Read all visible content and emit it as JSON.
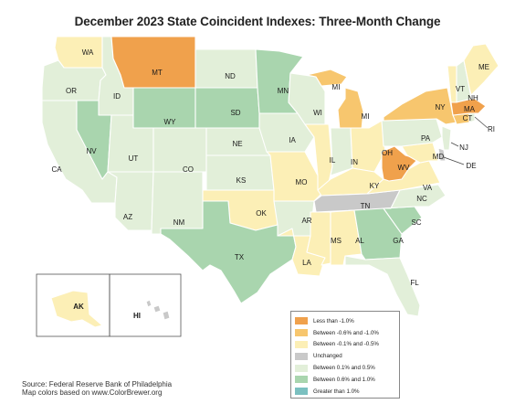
{
  "title": "December 2023 State Coincident Indexes: Three-Month Change",
  "legend": [
    {
      "key": "lt-1",
      "label": "Less than -1.0%",
      "color": "#f0a14c"
    },
    {
      "key": "m10-m06",
      "label": "Between -0.6% and -1.0%",
      "color": "#f7c66e"
    },
    {
      "key": "m05-m01",
      "label": "Between -0.1% and -0.5%",
      "color": "#fcefb6"
    },
    {
      "key": "zero",
      "label": "Unchanged",
      "color": "#c9c9c9"
    },
    {
      "key": "p01-p05",
      "label": "Between 0.1% and 0.5%",
      "color": "#e2efd9"
    },
    {
      "key": "p06-p10",
      "label": "Between 0.6% and 1.0%",
      "color": "#a9d5ae"
    },
    {
      "key": "gt1",
      "label": "Greater than 1.0%",
      "color": "#7bc0c0"
    }
  ],
  "states": [
    {
      "abbr": "WA",
      "cat": "m05-m01"
    },
    {
      "abbr": "OR",
      "cat": "p01-p05"
    },
    {
      "abbr": "CA",
      "cat": "p01-p05"
    },
    {
      "abbr": "ID",
      "cat": "p01-p05"
    },
    {
      "abbr": "NV",
      "cat": "p06-p10"
    },
    {
      "abbr": "UT",
      "cat": "p01-p05"
    },
    {
      "abbr": "AZ",
      "cat": "p01-p05"
    },
    {
      "abbr": "MT",
      "cat": "lt-1"
    },
    {
      "abbr": "WY",
      "cat": "p06-p10"
    },
    {
      "abbr": "CO",
      "cat": "p01-p05"
    },
    {
      "abbr": "NM",
      "cat": "p01-p05"
    },
    {
      "abbr": "ND",
      "cat": "p01-p05"
    },
    {
      "abbr": "SD",
      "cat": "p06-p10"
    },
    {
      "abbr": "NE",
      "cat": "p01-p05"
    },
    {
      "abbr": "KS",
      "cat": "p01-p05"
    },
    {
      "abbr": "OK",
      "cat": "m05-m01"
    },
    {
      "abbr": "TX",
      "cat": "p06-p10"
    },
    {
      "abbr": "MN",
      "cat": "p06-p10"
    },
    {
      "abbr": "IA",
      "cat": "p01-p05"
    },
    {
      "abbr": "MO",
      "cat": "m05-m01"
    },
    {
      "abbr": "AR",
      "cat": "p01-p05"
    },
    {
      "abbr": "LA",
      "cat": "m05-m01"
    },
    {
      "abbr": "WI",
      "cat": "p01-p05"
    },
    {
      "abbr": "IL",
      "cat": "m05-m01"
    },
    {
      "abbr": "MI",
      "cat": "m10-m06"
    },
    {
      "abbr": "IN",
      "cat": "p01-p05"
    },
    {
      "abbr": "OH",
      "cat": "m05-m01"
    },
    {
      "abbr": "KY",
      "cat": "m05-m01"
    },
    {
      "abbr": "TN",
      "cat": "zero"
    },
    {
      "abbr": "MS",
      "cat": "m05-m01"
    },
    {
      "abbr": "AL",
      "cat": "m05-m01"
    },
    {
      "abbr": "GA",
      "cat": "p06-p10"
    },
    {
      "abbr": "FL",
      "cat": "p01-p05"
    },
    {
      "abbr": "SC",
      "cat": "p06-p10"
    },
    {
      "abbr": "NC",
      "cat": "p01-p05"
    },
    {
      "abbr": "VA",
      "cat": "m05-m01"
    },
    {
      "abbr": "WV",
      "cat": "lt-1"
    },
    {
      "abbr": "MD",
      "cat": "m05-m01"
    },
    {
      "abbr": "DE",
      "cat": "zero"
    },
    {
      "abbr": "PA",
      "cat": "p01-p05"
    },
    {
      "abbr": "NJ",
      "cat": "p01-p05"
    },
    {
      "abbr": "NY",
      "cat": "m10-m06"
    },
    {
      "abbr": "CT",
      "cat": "m10-m06"
    },
    {
      "abbr": "RI",
      "cat": "p01-p05"
    },
    {
      "abbr": "MA",
      "cat": "lt-1"
    },
    {
      "abbr": "VT",
      "cat": "m05-m01"
    },
    {
      "abbr": "NH",
      "cat": "p01-p05"
    },
    {
      "abbr": "ME",
      "cat": "m05-m01"
    },
    {
      "abbr": "AK",
      "cat": "m05-m01"
    },
    {
      "abbr": "HI",
      "cat": "zero"
    }
  ],
  "source_lines": [
    "Source: Federal Reserve Bank of Philadelphia",
    "Map colors based on www.ColorBrewer.org"
  ]
}
